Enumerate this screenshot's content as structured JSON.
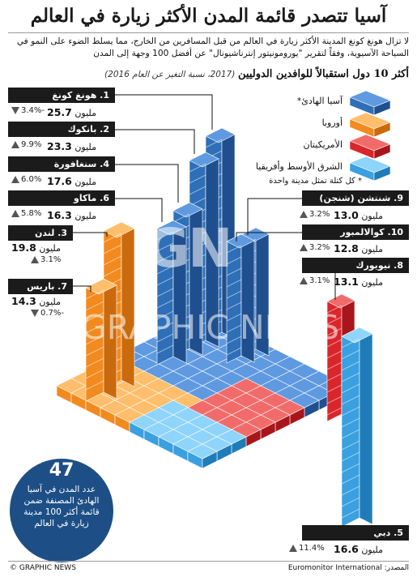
{
  "header": {
    "title": "آسيا تتصدر قائمة المدن الأكثر زيارة في العالم",
    "intro": "لا تزال هونغ كونغ المدينة الأكثر زيارة في العالم من قبل المسافرين من الخارج، مما يسلط الضوء على النمو في السياحة الآسيوية، وفقاً لتقرير \"يورومونيتور إنترناشيونال\" عن أفضل 100 وجهة إلى المدن",
    "subtitle_bold": "أكثر 10 دول استقبالاً للوافدين الدوليين",
    "subtitle_note": "(2017، نسبة التغير عن العام 2016)"
  },
  "legend": {
    "items": [
      {
        "label": "آسيا الهادئ*",
        "color": "#2f6fb7"
      },
      {
        "label": "أوروبا",
        "color": "#f28a1f"
      },
      {
        "label": "الأمريكيتان",
        "color": "#d9262b"
      },
      {
        "label": "الشرق الأوسط وأفريقيا",
        "color": "#3aa0df"
      }
    ],
    "footnote": "* كل كتلة تمثل مدينة واحدة"
  },
  "cities": [
    {
      "rank_name": "1. هونغ كونغ",
      "value": "25.7",
      "unit": "مليون",
      "change": "-3.4%",
      "dir": "down"
    },
    {
      "rank_name": "2. بانكوك",
      "value": "23.3",
      "unit": "مليون",
      "change": "9.9%",
      "dir": "up"
    },
    {
      "rank_name": "4. سنغافورة",
      "value": "17.6",
      "unit": "مليون",
      "change": "6.0%",
      "dir": "up"
    },
    {
      "rank_name": "6. ماكاو",
      "value": "16.3",
      "unit": "مليون",
      "change": "5.8%",
      "dir": "up"
    },
    {
      "rank_name": "3. لندن",
      "value": "19.8",
      "unit": "مليون",
      "change": "3.1%",
      "dir": "up"
    },
    {
      "rank_name": "7. باريس",
      "value": "14.3",
      "unit": "مليون",
      "change": "-0.7%",
      "dir": "down"
    },
    {
      "rank_name": "9. شنتشن (شنجن)",
      "value": "13.0",
      "unit": "مليون",
      "change": "3.2%",
      "dir": "up"
    },
    {
      "rank_name": "10. كوالالمبور",
      "value": "12.8",
      "unit": "مليون",
      "change": "3.2%",
      "dir": "up"
    },
    {
      "rank_name": "8. نيويورك",
      "value": "13.1",
      "unit": "مليون",
      "change": "3.1%",
      "dir": "up"
    },
    {
      "rank_name": "5. دبي",
      "value": "16.6",
      "unit": "مليون",
      "change": "11.4%",
      "dir": "up"
    }
  ],
  "callout": {
    "number": "47",
    "text": "عدد المدن في آسيا الهادئ المصنفة ضمن قائمة أكثر 100 مدينة زيارة في العالم"
  },
  "footer": {
    "source": "المصدر: Euromonitor International",
    "credit": "© GRAPHIC NEWS"
  },
  "watermark": {
    "logo": "GN",
    "text": "GRAPHIC NEWS"
  }
}
